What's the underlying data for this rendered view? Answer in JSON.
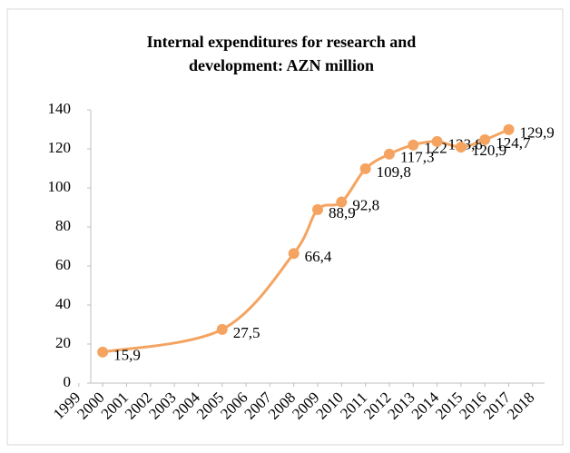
{
  "chart_data": {
    "type": "line",
    "title": [
      "Internal expenditures for research and",
      "development: AZN million"
    ],
    "x": [
      2000,
      2005,
      2008,
      2009,
      2010,
      2011,
      2012,
      2013,
      2014,
      2015,
      2016,
      2017
    ],
    "series": [
      {
        "name": null,
        "color": "#f4a460",
        "values": [
          15.9,
          27.5,
          66.4,
          88.9,
          92.8,
          109.8,
          117.3,
          122,
          123.8,
          120.9,
          124.7,
          129.9
        ],
        "value_labels": [
          "15,9",
          "27,5",
          "66,4",
          "88,9",
          "92,8",
          "109,8",
          "117,3",
          "122",
          "123,8",
          "120,9",
          "124,7",
          "129,9"
        ]
      }
    ],
    "xlim": [
      1999.5,
      2018.5
    ],
    "xticks": [
      1999,
      2000,
      2001,
      2002,
      2003,
      2004,
      2005,
      2006,
      2007,
      2008,
      2009,
      2010,
      2011,
      2012,
      2013,
      2014,
      2015,
      2016,
      2017,
      2018
    ],
    "ylim": [
      0,
      140
    ],
    "yticks": [
      0,
      20,
      40,
      60,
      80,
      100,
      120,
      140
    ],
    "grid": false
  }
}
